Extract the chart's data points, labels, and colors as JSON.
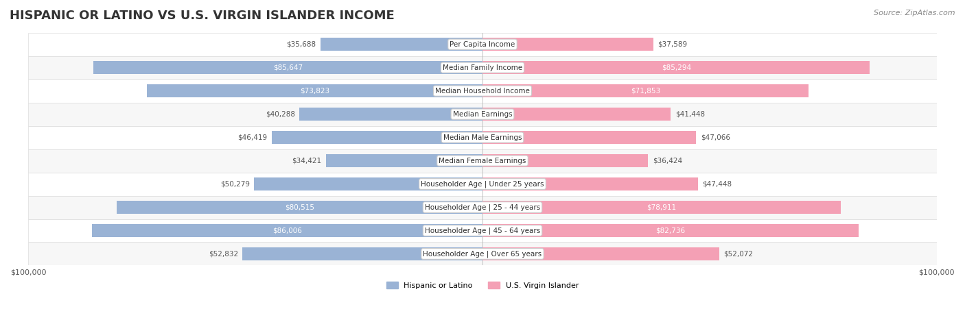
{
  "title": "HISPANIC OR LATINO VS U.S. VIRGIN ISLANDER INCOME",
  "source": "Source: ZipAtlas.com",
  "categories": [
    "Per Capita Income",
    "Median Family Income",
    "Median Household Income",
    "Median Earnings",
    "Median Male Earnings",
    "Median Female Earnings",
    "Householder Age | Under 25 years",
    "Householder Age | 25 - 44 years",
    "Householder Age | 45 - 64 years",
    "Householder Age | Over 65 years"
  ],
  "hispanic_values": [
    35688,
    85647,
    73823,
    40288,
    46419,
    34421,
    50279,
    80515,
    86006,
    52832
  ],
  "virgin_values": [
    37589,
    85294,
    71853,
    41448,
    47066,
    36424,
    47448,
    78911,
    82736,
    52072
  ],
  "max_val": 100000,
  "hispanic_color": "#9ab3d5",
  "virgin_color": "#f4a0b5",
  "hispanic_dark": "#5b8db8",
  "virgin_dark": "#e8608a",
  "bar_bg_color": "#f0f0f0",
  "row_bg_even": "#f7f7f7",
  "row_bg_odd": "#ffffff",
  "label_color_inside": "#ffffff",
  "label_color_outside": "#555555",
  "legend_hispanic": "Hispanic or Latino",
  "legend_virgin": "U.S. Virgin Islander",
  "title_fontsize": 13,
  "source_fontsize": 8,
  "label_fontsize": 7.5,
  "category_fontsize": 7.5,
  "bar_height": 0.55,
  "inside_threshold": 20000
}
